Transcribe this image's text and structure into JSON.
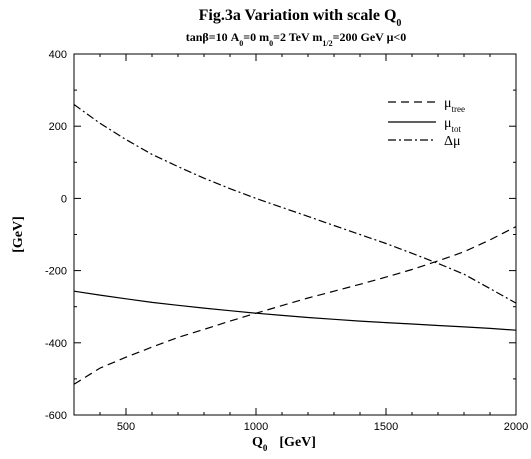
{
  "chart_data": {
    "type": "line",
    "title": "Fig.3a    Variation with scale Q",
    "title_sub": "0",
    "subtitle_parts": [
      {
        "text": "tanβ=10   A",
        "sub": "0"
      },
      {
        "text": "=0    m",
        "sub": "0"
      },
      {
        "text": "=2 TeV    m",
        "sub": "1/2"
      },
      {
        "text": "=200 GeV   μ<0",
        "sub": ""
      }
    ],
    "xlabel": "Q",
    "xlabel_sub": "0",
    "xlabel_unit": "[GeV]",
    "ylabel": "[GeV]",
    "xlim": [
      300,
      2000
    ],
    "ylim": [
      -600,
      400
    ],
    "xticks": [
      500,
      1000,
      1500,
      2000
    ],
    "yticks": [
      -600,
      -400,
      -200,
      0,
      200,
      400
    ],
    "legend_position": "top-right",
    "series": [
      {
        "name": "μ",
        "name_sub": "tree",
        "style": "dashed",
        "x": [
          300,
          400,
          500,
          600,
          700,
          800,
          900,
          1000,
          1100,
          1200,
          1300,
          1400,
          1500,
          1600,
          1700,
          1800,
          1900,
          2000
        ],
        "y": [
          -515,
          -470,
          -440,
          -412,
          -385,
          -363,
          -340,
          -318,
          -297,
          -276,
          -257,
          -238,
          -218,
          -197,
          -173,
          -148,
          -115,
          -78
        ]
      },
      {
        "name": "μ",
        "name_sub": "tot",
        "style": "solid",
        "x": [
          300,
          400,
          500,
          600,
          700,
          800,
          900,
          1000,
          1100,
          1200,
          1300,
          1400,
          1500,
          1600,
          1700,
          1800,
          1900,
          2000
        ],
        "y": [
          -257,
          -268,
          -278,
          -288,
          -296,
          -304,
          -311,
          -318,
          -324,
          -330,
          -335,
          -340,
          -344,
          -348,
          -352,
          -356,
          -360,
          -365
        ]
      },
      {
        "name": "Δμ",
        "name_sub": "",
        "style": "dashdot",
        "x": [
          300,
          400,
          500,
          600,
          700,
          800,
          900,
          1000,
          1100,
          1200,
          1300,
          1400,
          1500,
          1600,
          1700,
          1800,
          1900,
          2000
        ],
        "y": [
          260,
          208,
          163,
          122,
          88,
          56,
          27,
          0,
          -25,
          -50,
          -75,
          -100,
          -125,
          -152,
          -180,
          -210,
          -250,
          -290
        ]
      }
    ]
  }
}
